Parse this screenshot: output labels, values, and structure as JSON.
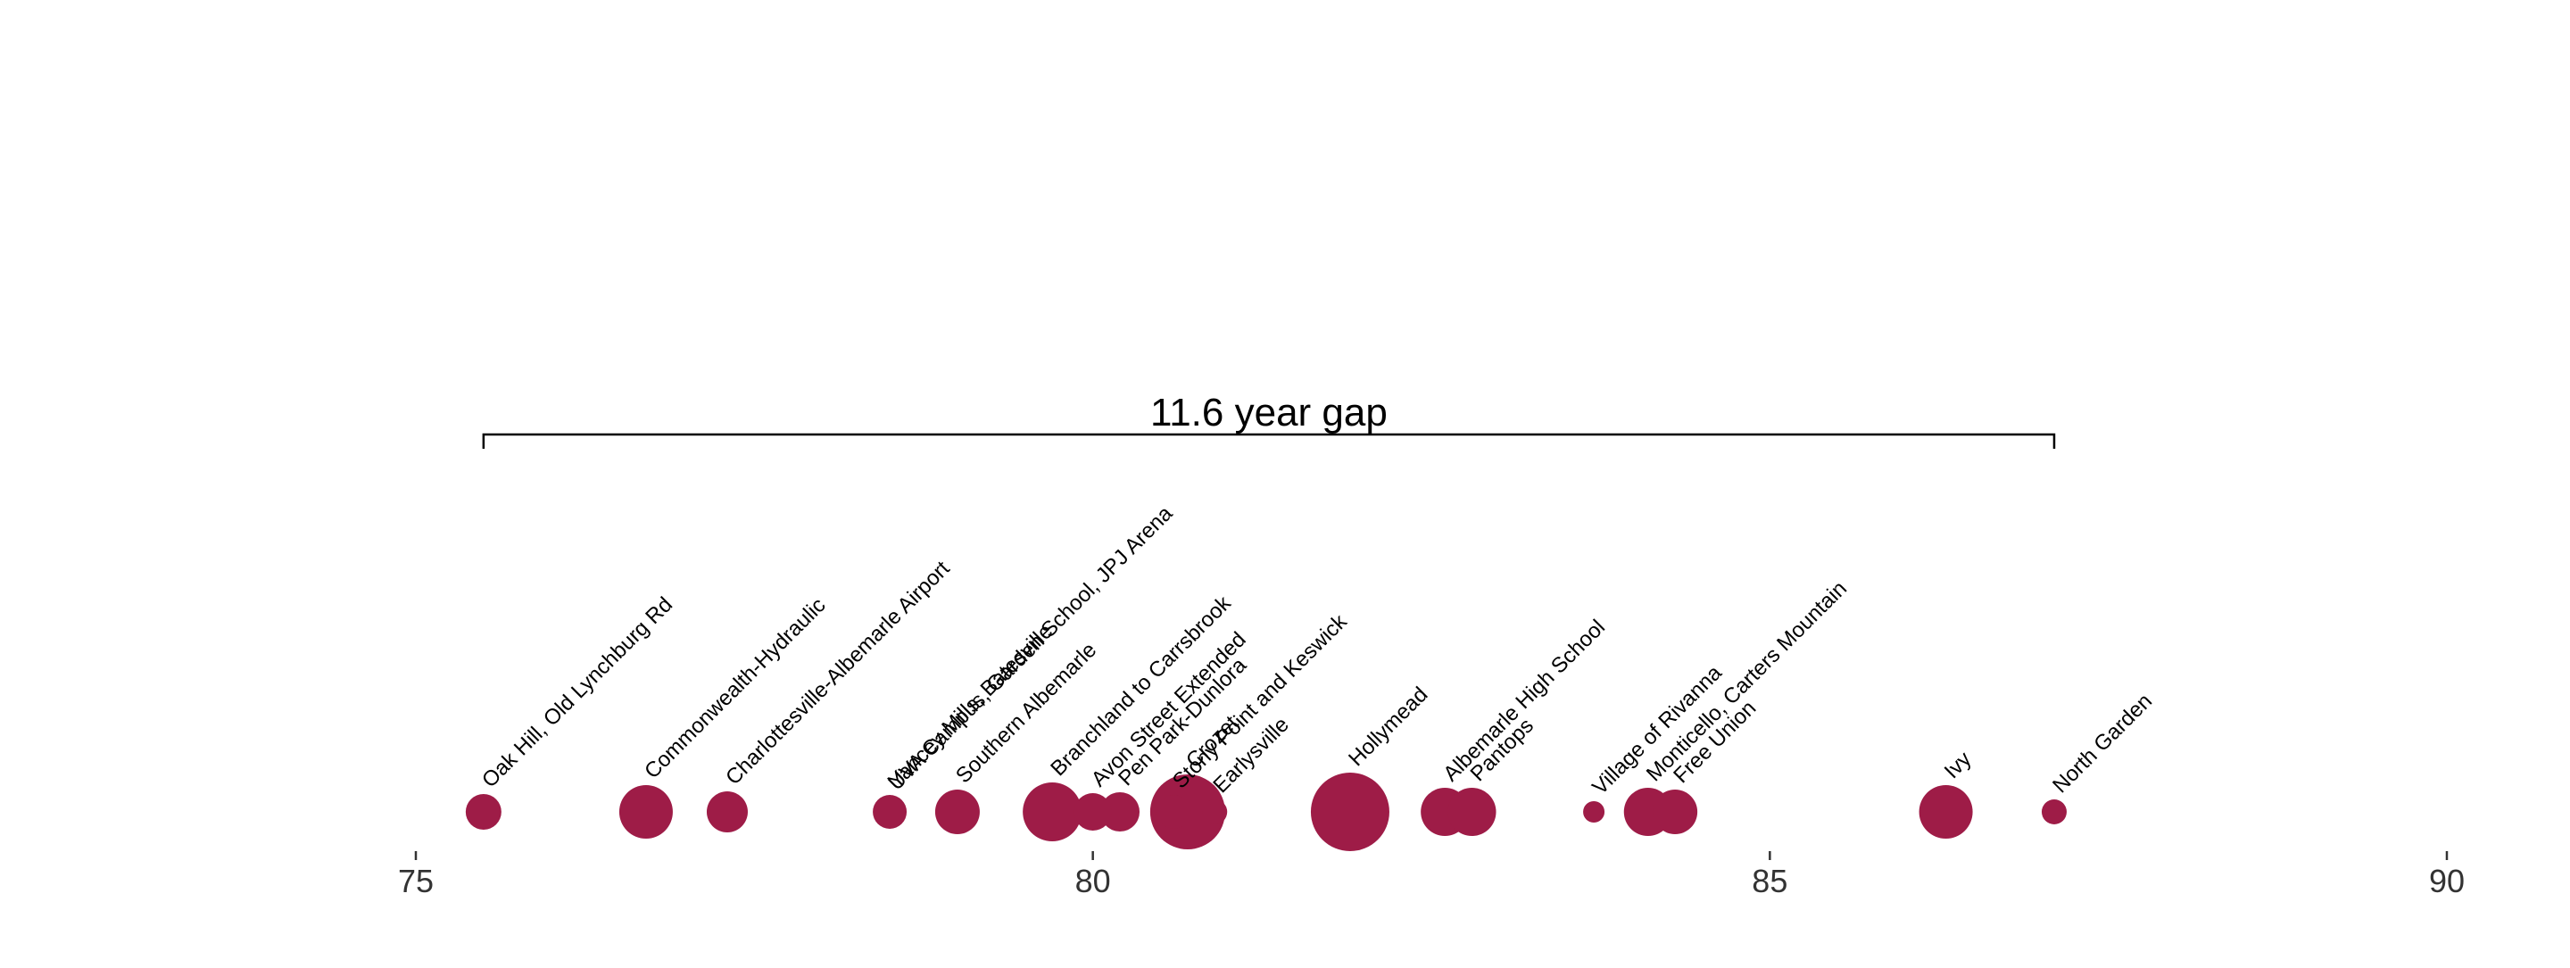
{
  "chart_data": {
    "type": "scatter",
    "title": "",
    "xlabel": "",
    "ylabel": "",
    "xlim": [
      75,
      90
    ],
    "xticks": [
      75,
      80,
      85,
      90
    ],
    "grid": false,
    "legend": "none",
    "point_color": "#9e1c47",
    "bracket_color": "#000000",
    "tick_label_color": "#333333",
    "annotation": {
      "text": "11.6 year gap",
      "x_start": 75.5,
      "x_end": 87.1
    },
    "points": [
      {
        "label": "Oak Hill, Old Lynchburg Rd",
        "x": 75.5,
        "size": 1.0
      },
      {
        "label": "Commonwealth-Hydraulic",
        "x": 76.7,
        "size": 1.5
      },
      {
        "label": "Charlottesville-Albemarle Airport",
        "x": 77.3,
        "size": 1.15
      },
      {
        "label": "Yancey Mills, Batesville",
        "x": 78.5,
        "size": 0.95
      },
      {
        "label": "UVA Campus, Garden School, JPJ Arena",
        "x": 78.5,
        "size": 0.85
      },
      {
        "label": "Southern Albemarle",
        "x": 79.0,
        "size": 1.25
      },
      {
        "label": "Branchland to Carrsbrook",
        "x": 79.7,
        "size": 1.65
      },
      {
        "label": "Avon Street Extended",
        "x": 80.0,
        "size": 1.05
      },
      {
        "label": "Pen Park-Dunlora",
        "x": 80.2,
        "size": 1.1
      },
      {
        "label": "Stony Point and Keswick",
        "x": 80.6,
        "size": 0.95
      },
      {
        "label": "Crozet",
        "x": 80.7,
        "size": 2.1
      },
      {
        "label": "Earlysville",
        "x": 80.9,
        "size": 0.7
      },
      {
        "label": "Hollymead",
        "x": 81.9,
        "size": 2.2
      },
      {
        "label": "Albemarle High School",
        "x": 82.6,
        "size": 1.35
      },
      {
        "label": "Pantops",
        "x": 82.8,
        "size": 1.35
      },
      {
        "label": "Village of Rivanna",
        "x": 83.7,
        "size": 0.6
      },
      {
        "label": "Monticello, Carters Mountain",
        "x": 84.1,
        "size": 1.35
      },
      {
        "label": "Free Union",
        "x": 84.3,
        "size": 1.25
      },
      {
        "label": "Ivy",
        "x": 86.3,
        "size": 1.5
      },
      {
        "label": "North Garden",
        "x": 87.1,
        "size": 0.7
      }
    ]
  }
}
